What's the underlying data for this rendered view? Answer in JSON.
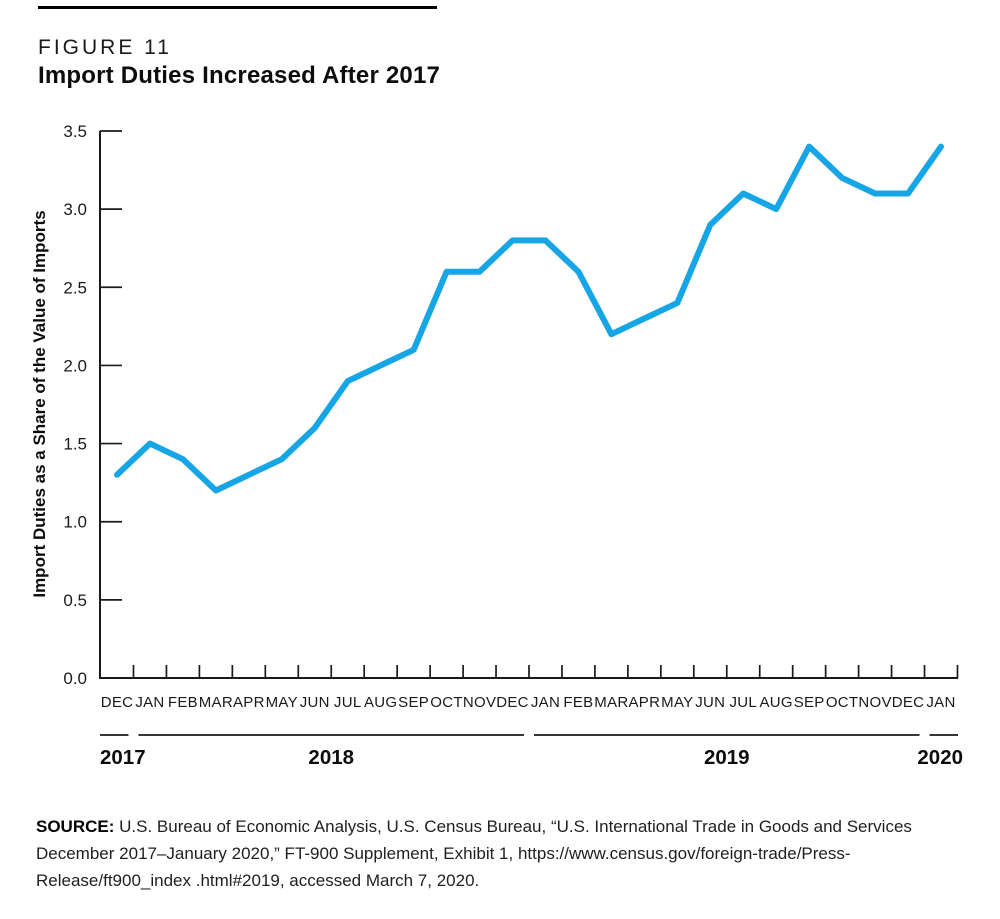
{
  "figure": {
    "label": "FIGURE 11",
    "title": "Import Duties Increased After 2017"
  },
  "source": {
    "prefix": "SOURCE:",
    "lines": [
      "U.S. Bureau of Economic Analysis, U.S. Census Bureau, “U.S. International Trade in Goods and Services December",
      "2017–January 2020,” FT-900 Supplement, Exhibit 1, https://www.census.gov/foreign-trade/Press-Release/ft900_index",
      ".html#2019, accessed March 7, 2020."
    ]
  },
  "chart_data": {
    "type": "line",
    "title": "Import Duties Increased After 2017",
    "xlabel": "",
    "ylabel": "Import Duties as a Share of the Value of Imports",
    "ylim": [
      0,
      3.5
    ],
    "yticks": [
      "0.0",
      "0.5",
      "1.0",
      "1.5",
      "2.0",
      "2.5",
      "3.0",
      "3.5"
    ],
    "months": [
      "DEC",
      "JAN",
      "FEB",
      "MAR",
      "APR",
      "MAY",
      "JUN",
      "JUL",
      "AUG",
      "SEP",
      "OCT",
      "NOV",
      "DEC",
      "JAN",
      "FEB",
      "MAR",
      "APR",
      "MAY",
      "JUN",
      "JUL",
      "AUG",
      "SEP",
      "OCT",
      "NOV",
      "DEC",
      "JAN"
    ],
    "values": [
      1.3,
      1.5,
      1.4,
      1.2,
      1.3,
      1.4,
      1.6,
      1.9,
      2.0,
      2.1,
      2.6,
      2.6,
      2.8,
      2.8,
      2.6,
      2.2,
      2.3,
      2.4,
      2.9,
      3.1,
      3.0,
      3.4,
      3.2,
      3.1,
      3.1,
      3.4
    ],
    "year_groups": [
      {
        "label": "2017",
        "count": 1
      },
      {
        "label": "2018",
        "count": 12
      },
      {
        "label": "2019",
        "count": 12
      },
      {
        "label": "2020",
        "count": 1
      }
    ],
    "grid": false,
    "legend": "none",
    "line_color": "#16A5E5",
    "axis_color": "#1a1a1a"
  }
}
